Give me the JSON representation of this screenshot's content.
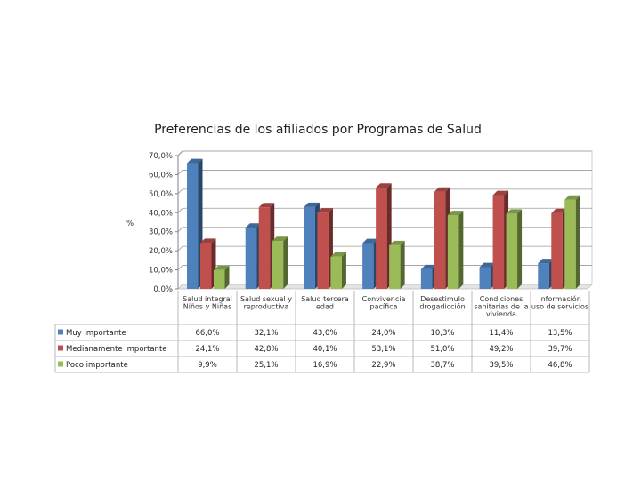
{
  "chart_data": {
    "type": "bar",
    "title": "Preferencias de los afiliados por Programas de Salud",
    "ylabel": "%",
    "xlabel": "",
    "ylim": [
      0,
      70
    ],
    "yticks": [
      "0,0%",
      "10,0%",
      "20,0%",
      "30,0%",
      "40,0%",
      "50,0%",
      "60,0%",
      "70,0%"
    ],
    "categories": [
      "Salud integral Niños y Niñas",
      "Salud sexual y reproductiva",
      "Salud tercera edad",
      "Convivencia pacífica",
      "Desestimulo drogadicción",
      "Condiciones sanitarias de la vivienda",
      "Información uso de servicios"
    ],
    "category_lines": [
      [
        "Salud integral",
        "Niños y Niñas"
      ],
      [
        "Salud sexual y",
        "reproductiva"
      ],
      [
        "Salud tercera",
        "edad"
      ],
      [
        "Convivencia",
        "pacífica"
      ],
      [
        "Desestimulo",
        "drogadicción"
      ],
      [
        "Condiciones",
        "sanitarias de la",
        "vivienda"
      ],
      [
        "Información",
        "uso de servicios"
      ]
    ],
    "series": [
      {
        "name": "Muy importante",
        "color": "#4F81BD",
        "values": [
          66.0,
          32.1,
          43.0,
          24.0,
          10.3,
          11.4,
          13.5
        ],
        "labels": [
          "66,0%",
          "32,1%",
          "43,0%",
          "24,0%",
          "10,3%",
          "11,4%",
          "13,5%"
        ]
      },
      {
        "name": "Medianamente importante",
        "color": "#C0504D",
        "values": [
          24.1,
          42.8,
          40.1,
          53.1,
          51.0,
          49.2,
          39.7
        ],
        "labels": [
          "24,1%",
          "42,8%",
          "40,1%",
          "53,1%",
          "51,0%",
          "49,2%",
          "39,7%"
        ]
      },
      {
        "name": "Poco importante",
        "color": "#9BBB59",
        "values": [
          9.9,
          25.1,
          16.9,
          22.9,
          38.7,
          39.5,
          46.8
        ],
        "labels": [
          "9,9%",
          "25,1%",
          "16,9%",
          "22,9%",
          "38,7%",
          "39,5%",
          "46,8%"
        ]
      }
    ]
  }
}
